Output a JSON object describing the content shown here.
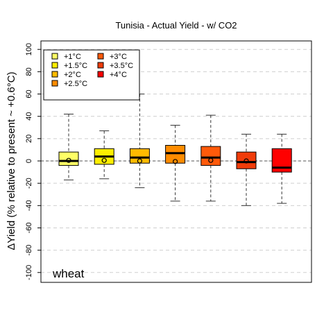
{
  "chart_data": {
    "type": "box",
    "title": "Tunisia - Actual Yield - w/ CO2",
    "ylabel": "ΔYield (% relative to present ~ +0.6°C)",
    "xlabel": "",
    "annotation": "wheat",
    "ylim": [
      -105,
      102
    ],
    "yticks": [
      -100,
      -80,
      -60,
      -40,
      -20,
      0,
      20,
      40,
      60,
      80,
      100
    ],
    "grid": true,
    "reference_line": 0,
    "legend_position": "top-left",
    "series": [
      {
        "name": "+1°C",
        "color": "#ffff66",
        "min": -17,
        "q1": -4,
        "median": 0,
        "q3": 8,
        "max": 42,
        "mean": 0.5
      },
      {
        "name": "+1.5°C",
        "color": "#ffee00",
        "min": -16,
        "q1": -3,
        "median": 4,
        "q3": 11,
        "max": 27,
        "mean": 0.5
      },
      {
        "name": "+2°C",
        "color": "#ffbb00",
        "min": -24,
        "q1": -2,
        "median": 3,
        "q3": 11,
        "max": 60,
        "mean": 0
      },
      {
        "name": "+2.5°C",
        "color": "#ff8c00",
        "min": -36,
        "q1": -2,
        "median": 7,
        "q3": 14,
        "max": 32,
        "mean": -0.5
      },
      {
        "name": "+3°C",
        "color": "#ff5a0a",
        "min": -36,
        "q1": -4,
        "median": 3,
        "q3": 13,
        "max": 41,
        "mean": 0.5
      },
      {
        "name": "+3.5°C",
        "color": "#f03c0a",
        "min": -40,
        "q1": -7,
        "median": -1,
        "q3": 8,
        "max": 24,
        "mean": 0
      },
      {
        "name": "+4°C",
        "color": "#ff0000",
        "min": -38,
        "q1": -10,
        "median": -6,
        "q3": 11,
        "max": 24,
        "mean": null
      }
    ]
  }
}
